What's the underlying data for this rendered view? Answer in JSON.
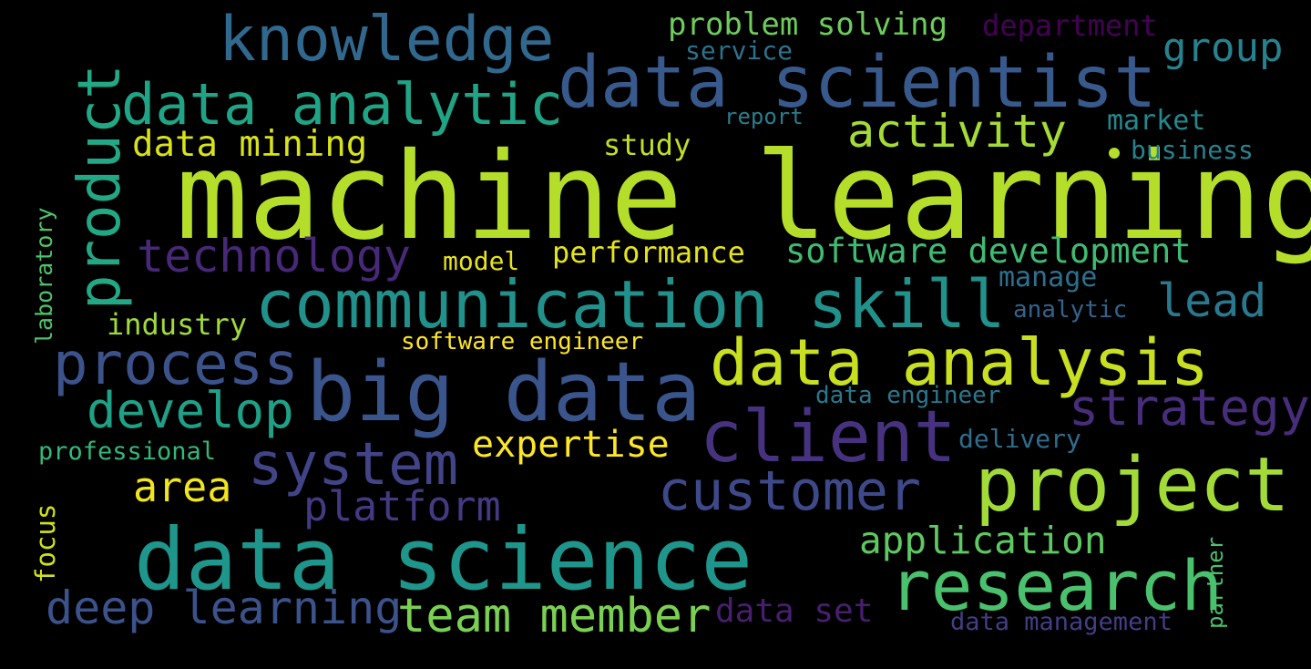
{
  "word_cloud": {
    "background": "#000000",
    "words": [
      {
        "text": "machine learning",
        "color": "#b5de2b"
      },
      {
        "text": "data scientist",
        "color": "#38598c"
      },
      {
        "text": "knowledge",
        "color": "#31688e"
      },
      {
        "text": "data analytic",
        "color": "#20a486"
      },
      {
        "text": "product",
        "color": "#22a884"
      },
      {
        "text": "data mining",
        "color": "#d8e219"
      },
      {
        "text": "problem solving",
        "color": "#6ccd5a"
      },
      {
        "text": "service",
        "color": "#2c728e"
      },
      {
        "text": "department",
        "color": "#440154"
      },
      {
        "text": "group",
        "color": "#26828e"
      },
      {
        "text": "activity",
        "color": "#a5db36"
      },
      {
        "text": "study",
        "color": "#c2df23"
      },
      {
        "text": "report",
        "color": "#287d8e"
      },
      {
        "text": "market",
        "color": "#23898e"
      },
      {
        "text": "business",
        "color": "#25838e"
      },
      {
        "text": "technology",
        "color": "#482878"
      },
      {
        "text": "performance",
        "color": "#e5e419"
      },
      {
        "text": "software development",
        "color": "#3fbc73"
      },
      {
        "text": "model",
        "color": "#e7e419"
      },
      {
        "text": "manage",
        "color": "#2d708e"
      },
      {
        "text": "communication skill",
        "color": "#21918c"
      },
      {
        "text": "lead",
        "color": "#2a788e"
      },
      {
        "text": "laboratory",
        "color": "#4ec36b"
      },
      {
        "text": "industry",
        "color": "#a0da39"
      },
      {
        "text": "analytic",
        "color": "#33638d"
      },
      {
        "text": "software engineer",
        "color": "#fde725"
      },
      {
        "text": "process",
        "color": "#3b528b"
      },
      {
        "text": "big data",
        "color": "#3a548c"
      },
      {
        "text": "data analysis",
        "color": "#c8e020"
      },
      {
        "text": "develop",
        "color": "#1fa187"
      },
      {
        "text": "data engineer",
        "color": "#2a788e"
      },
      {
        "text": "strategy",
        "color": "#472d7b"
      },
      {
        "text": "client",
        "color": "#46327e"
      },
      {
        "text": "system",
        "color": "#414487"
      },
      {
        "text": "professional",
        "color": "#35b779"
      },
      {
        "text": "expertise",
        "color": "#fde725"
      },
      {
        "text": "delivery",
        "color": "#2f6c8e"
      },
      {
        "text": "area",
        "color": "#f1e51d"
      },
      {
        "text": "customer",
        "color": "#3e4989"
      },
      {
        "text": "project",
        "color": "#a2da37"
      },
      {
        "text": "platform",
        "color": "#443a83"
      },
      {
        "text": "focus",
        "color": "#d0e11c"
      },
      {
        "text": "data science",
        "color": "#1f968b"
      },
      {
        "text": "application",
        "color": "#5ec962"
      },
      {
        "text": "research",
        "color": "#4ac16d"
      },
      {
        "text": "partner",
        "color": "#4ac16d"
      },
      {
        "text": "deep learning",
        "color": "#3b528b"
      },
      {
        "text": "team member",
        "color": "#7ad151"
      },
      {
        "text": "data set",
        "color": "#481f70"
      },
      {
        "text": "data management",
        "color": "#433e85"
      }
    ]
  }
}
